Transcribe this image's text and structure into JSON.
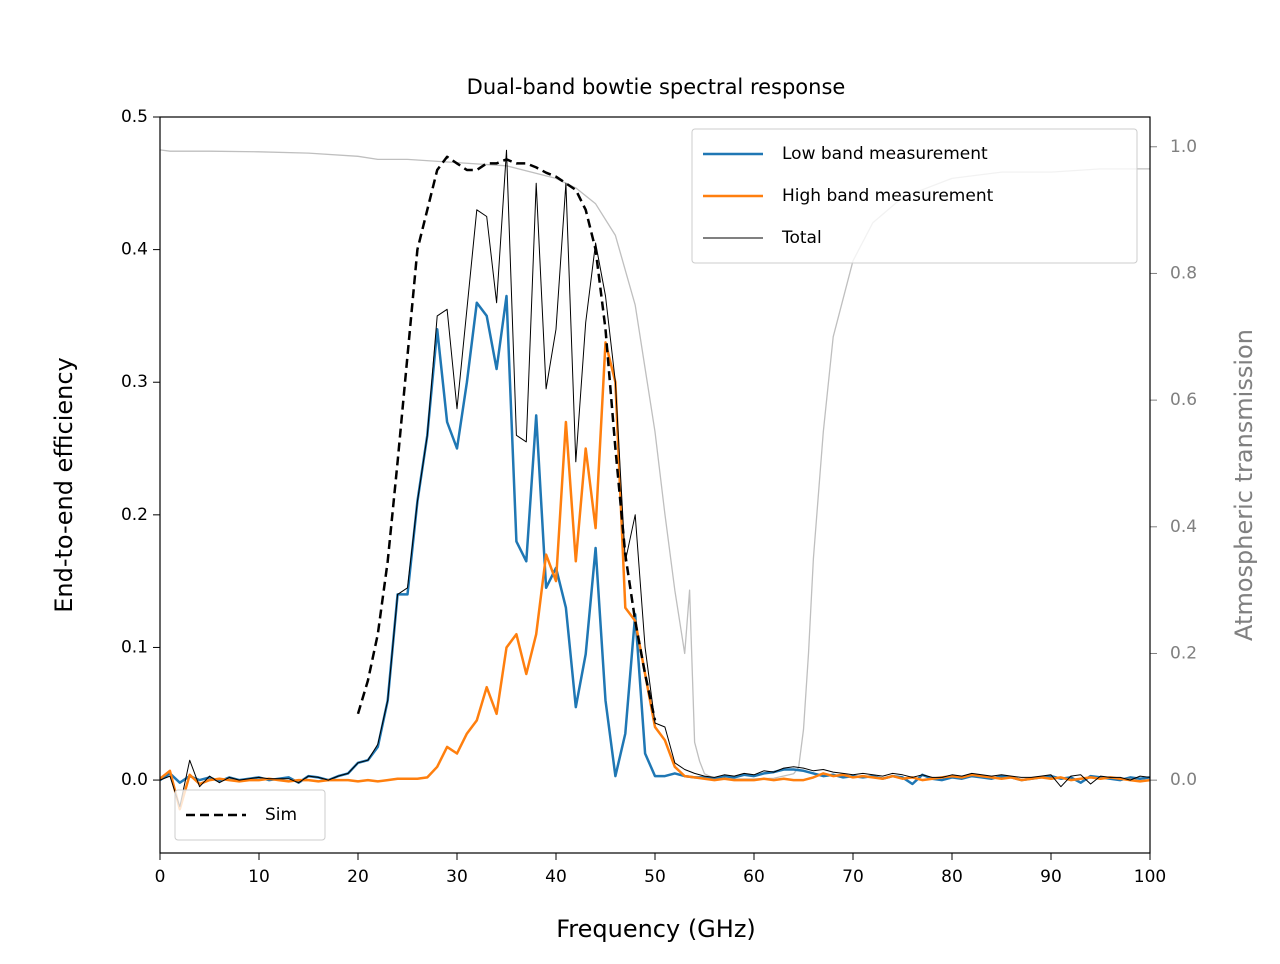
{
  "chart_data": {
    "type": "line",
    "title": "Dual-band bowtie spectral response",
    "x_label": "Frequency (GHz)",
    "y_label": "End-to-end efficiency",
    "y2_label": "Atmospheric transmission",
    "xlim": [
      0,
      100
    ],
    "xticks": [
      0,
      10,
      20,
      30,
      40,
      50,
      60,
      70,
      80,
      90,
      100
    ],
    "ylim": [
      -0.055,
      0.5
    ],
    "yticks": [
      {
        "value": 0,
        "label": "0.0"
      },
      0.1,
      0.2,
      0.3,
      0.4,
      0.5
    ],
    "y2lim": [
      -0.115,
      1.047
    ],
    "y2ticks": [
      {
        "value": 0,
        "label": "0.0"
      },
      0.2,
      0.4,
      0.6,
      0.8,
      {
        "value": 1,
        "label": "1.0"
      }
    ],
    "y2_color": "#808080",
    "x": [
      0,
      1,
      2,
      3,
      4,
      5,
      6,
      7,
      8,
      9,
      10,
      11,
      12,
      13,
      14,
      15,
      16,
      17,
      18,
      19,
      20,
      21,
      22,
      23,
      24,
      25,
      26,
      27,
      28,
      29,
      30,
      31,
      32,
      33,
      34,
      35,
      36,
      37,
      38,
      39,
      40,
      41,
      42,
      43,
      44,
      45,
      46,
      47,
      48,
      49,
      50,
      51,
      52,
      53,
      54,
      55,
      56,
      57,
      58,
      59,
      60,
      61,
      62,
      63,
      64,
      65,
      66,
      67,
      68,
      69,
      70,
      71,
      72,
      73,
      74,
      75,
      76,
      77,
      78,
      79,
      80,
      81,
      82,
      83,
      84,
      85,
      86,
      87,
      88,
      89,
      90,
      91,
      92,
      93,
      94,
      95,
      96,
      97,
      98,
      99,
      100
    ],
    "series": [
      {
        "color": "#bfbfbf",
        "axis": "y2",
        "width": 1.3,
        "x": [
          0,
          1,
          5,
          10,
          15,
          20,
          22,
          25,
          30,
          35,
          40,
          42,
          44,
          46,
          48,
          49,
          50,
          51,
          52,
          53,
          53.5,
          54,
          54.5,
          55,
          56,
          58,
          60,
          62,
          64,
          64.5,
          65,
          65.5,
          66,
          67,
          68,
          70,
          72,
          75,
          80,
          85,
          90,
          95,
          100
        ],
        "values": [
          0.995,
          0.993,
          0.993,
          0.992,
          0.99,
          0.985,
          0.98,
          0.98,
          0.975,
          0.97,
          0.95,
          0.935,
          0.91,
          0.86,
          0.75,
          0.65,
          0.55,
          0.42,
          0.3,
          0.2,
          0.3,
          0.06,
          0.03,
          0.01,
          0.003,
          0.002,
          0.002,
          0.003,
          0.01,
          0.02,
          0.08,
          0.2,
          0.35,
          0.55,
          0.7,
          0.82,
          0.88,
          0.92,
          0.95,
          0.96,
          0.96,
          0.965,
          0.965
        ]
      },
      {
        "name": "Low band measurement",
        "color": "#1f77b4",
        "width": 2.5,
        "legend": "upper right",
        "values": [
          0,
          0.005,
          -0.002,
          0.003,
          0,
          0.002,
          -0.001,
          0.002,
          0,
          0.001,
          0.002,
          0,
          0.001,
          0.002,
          -0.002,
          0.003,
          0.002,
          0,
          0.003,
          0.005,
          0.013,
          0.015,
          0.025,
          0.06,
          0.14,
          0.14,
          0.21,
          0.26,
          0.34,
          0.27,
          0.25,
          0.3,
          0.36,
          0.35,
          0.31,
          0.365,
          0.18,
          0.165,
          0.275,
          0.145,
          0.16,
          0.13,
          0.055,
          0.095,
          0.175,
          0.06,
          0.003,
          0.035,
          0.125,
          0.02,
          0.003,
          0.003,
          0.005,
          0.003,
          0.002,
          0.002,
          0.001,
          0.003,
          0.002,
          0.004,
          0.003,
          0.005,
          0.006,
          0.008,
          0.008,
          0.007,
          0.005,
          0.003,
          0.004,
          0.002,
          0.003,
          0.002,
          0.003,
          0.001,
          0.003,
          0.002,
          -0.003,
          0.004,
          0.001,
          0,
          0.002,
          0.001,
          0.003,
          0.002,
          0.001,
          0.003,
          0.002,
          0,
          0.001,
          0.002,
          0.003,
          0.001,
          0.002,
          -0.002,
          0.003,
          0.002,
          0.001,
          0,
          0.002,
          0.001,
          0.002
        ]
      },
      {
        "name": "High band measurement",
        "color": "#ff7f0e",
        "width": 2.5,
        "legend": "upper right",
        "values": [
          0.001,
          0.007,
          -0.022,
          0.004,
          -0.003,
          0,
          0.001,
          0,
          -0.001,
          0,
          0,
          0.001,
          0,
          -0.001,
          0,
          0,
          -0.001,
          0,
          0,
          0,
          -0.001,
          0,
          -0.001,
          0,
          0.001,
          0.001,
          0.001,
          0.002,
          0.01,
          0.025,
          0.02,
          0.035,
          0.045,
          0.07,
          0.05,
          0.1,
          0.11,
          0.08,
          0.11,
          0.17,
          0.15,
          0.27,
          0.165,
          0.25,
          0.19,
          0.33,
          0.3,
          0.13,
          0.12,
          0.08,
          0.04,
          0.03,
          0.01,
          0.003,
          0.002,
          0.001,
          0,
          0.001,
          0,
          0,
          0,
          0.001,
          0,
          0.001,
          0,
          0,
          0.002,
          0.005,
          0.003,
          0.004,
          0.002,
          0.003,
          0.002,
          0.001,
          0.003,
          0.001,
          0.002,
          0,
          0.001,
          0.002,
          0.003,
          0.002,
          0.004,
          0.003,
          0.002,
          0.001,
          0.002,
          0,
          0.001,
          0.002,
          0.001,
          0.002,
          0,
          0.001,
          0.002,
          0.001,
          0.002,
          0.001,
          0,
          -0.001,
          0
        ]
      },
      {
        "name": "Total",
        "color": "#000000",
        "width": 1,
        "legend": "upper right",
        "values": [
          0,
          0.003,
          -0.02,
          0.015,
          -0.005,
          0.003,
          -0.002,
          0.002,
          0,
          0.001,
          0.002,
          0.001,
          0.001,
          0.001,
          -0.002,
          0.003,
          0.002,
          0,
          0.003,
          0.005,
          0.013,
          0.015,
          0.027,
          0.06,
          0.14,
          0.145,
          0.21,
          0.26,
          0.35,
          0.355,
          0.28,
          0.355,
          0.43,
          0.425,
          0.36,
          0.475,
          0.26,
          0.255,
          0.45,
          0.295,
          0.34,
          0.45,
          0.24,
          0.345,
          0.405,
          0.365,
          0.3,
          0.165,
          0.2,
          0.1,
          0.043,
          0.04,
          0.013,
          0.008,
          0.005,
          0.003,
          0.002,
          0.004,
          0.003,
          0.005,
          0.004,
          0.007,
          0.006,
          0.009,
          0.01,
          0.009,
          0.007,
          0.008,
          0.006,
          0.005,
          0.004,
          0.005,
          0.004,
          0.003,
          0.005,
          0.004,
          0.002,
          0.004,
          0.002,
          0.002,
          0.004,
          0.003,
          0.005,
          0.004,
          0.003,
          0.004,
          0.003,
          0.002,
          0.002,
          0.003,
          0.004,
          -0.005,
          0.003,
          0.004,
          -0.003,
          0.003,
          0.002,
          0.002,
          0,
          0.003,
          0.002
        ]
      },
      {
        "name": "Sim",
        "color": "#000000",
        "width": 2.5,
        "dash": "dashed",
        "legend": "lower left",
        "x": [
          20,
          21,
          22,
          23,
          24,
          25,
          26,
          27,
          28,
          29,
          30,
          31,
          32,
          33,
          34,
          35,
          36,
          37,
          38,
          39,
          40,
          41,
          42,
          43,
          44,
          45,
          46,
          47,
          48,
          49,
          50
        ],
        "values": [
          0.05,
          0.075,
          0.11,
          0.165,
          0.24,
          0.32,
          0.4,
          0.43,
          0.46,
          0.47,
          0.465,
          0.46,
          0.46,
          0.465,
          0.465,
          0.468,
          0.465,
          0.465,
          0.462,
          0.458,
          0.455,
          0.45,
          0.445,
          0.43,
          0.4,
          0.34,
          0.25,
          0.17,
          0.12,
          0.08,
          0.045
        ]
      }
    ]
  }
}
